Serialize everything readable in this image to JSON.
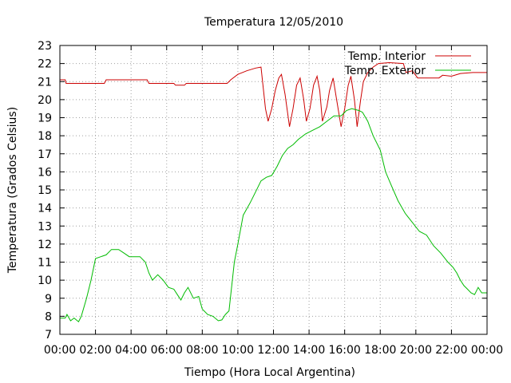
{
  "chart_data": {
    "type": "line",
    "title": "Temperatura 12/05/2010",
    "xlabel": "Tiempo (Hora Local Argentina)",
    "ylabel": "Temperatura (Grados Celsius)",
    "xlim": [
      "00:00",
      "24:00"
    ],
    "ylim": [
      7,
      23
    ],
    "x_unit": "hours",
    "x_ticks": [
      "00:00",
      "02:00",
      "04:00",
      "06:00",
      "08:00",
      "10:00",
      "12:00",
      "14:00",
      "16:00",
      "18:00",
      "20:00",
      "22:00",
      "00:00"
    ],
    "y_ticks": [
      7,
      8,
      9,
      10,
      11,
      12,
      13,
      14,
      15,
      16,
      17,
      18,
      19,
      20,
      21,
      22,
      23
    ],
    "grid": true,
    "legend_position": "top-right",
    "series": [
      {
        "name": "Temp. Interior",
        "color": "#cc0000",
        "points": [
          [
            0,
            21.1
          ],
          [
            0.3,
            21.1
          ],
          [
            0.35,
            20.9
          ],
          [
            2.5,
            20.9
          ],
          [
            2.6,
            21.1
          ],
          [
            4.9,
            21.1
          ],
          [
            5.0,
            20.9
          ],
          [
            6.4,
            20.9
          ],
          [
            6.5,
            20.8
          ],
          [
            7.0,
            20.8
          ],
          [
            7.1,
            20.9
          ],
          [
            9.4,
            20.9
          ],
          [
            9.6,
            21.1
          ],
          [
            10.0,
            21.4
          ],
          [
            10.5,
            21.6
          ],
          [
            11.0,
            21.75
          ],
          [
            11.3,
            21.8
          ],
          [
            11.55,
            19.5
          ],
          [
            11.7,
            18.8
          ],
          [
            11.9,
            19.5
          ],
          [
            12.1,
            20.5
          ],
          [
            12.3,
            21.2
          ],
          [
            12.45,
            21.4
          ],
          [
            12.65,
            20.3
          ],
          [
            12.9,
            18.5
          ],
          [
            13.1,
            19.5
          ],
          [
            13.3,
            20.8
          ],
          [
            13.5,
            21.2
          ],
          [
            13.7,
            20.0
          ],
          [
            13.85,
            18.8
          ],
          [
            14.05,
            19.5
          ],
          [
            14.25,
            20.8
          ],
          [
            14.45,
            21.3
          ],
          [
            14.6,
            20.5
          ],
          [
            14.75,
            18.8
          ],
          [
            15.0,
            19.6
          ],
          [
            15.15,
            20.5
          ],
          [
            15.35,
            21.2
          ],
          [
            15.55,
            20.0
          ],
          [
            15.8,
            18.5
          ],
          [
            16.0,
            19.5
          ],
          [
            16.2,
            20.8
          ],
          [
            16.35,
            21.3
          ],
          [
            16.55,
            20.0
          ],
          [
            16.7,
            18.5
          ],
          [
            16.9,
            20.0
          ],
          [
            17.05,
            21.0
          ],
          [
            17.3,
            21.5
          ],
          [
            17.6,
            21.8
          ],
          [
            17.9,
            22.0
          ],
          [
            18.5,
            22.05
          ],
          [
            19.3,
            22.0
          ],
          [
            19.45,
            21.5
          ],
          [
            19.8,
            21.6
          ],
          [
            20.1,
            21.2
          ],
          [
            20.5,
            21.2
          ],
          [
            21.3,
            21.2
          ],
          [
            21.5,
            21.35
          ],
          [
            22.0,
            21.3
          ],
          [
            22.5,
            21.45
          ],
          [
            23.2,
            21.5
          ],
          [
            24.0,
            21.5
          ]
        ]
      },
      {
        "name": "Temp. Exterior",
        "color": "#00bb00",
        "points": [
          [
            0,
            7.9
          ],
          [
            0.3,
            7.9
          ],
          [
            0.4,
            8.1
          ],
          [
            0.6,
            7.75
          ],
          [
            0.8,
            7.9
          ],
          [
            1.05,
            7.7
          ],
          [
            1.2,
            8.0
          ],
          [
            1.5,
            9.0
          ],
          [
            1.75,
            10.0
          ],
          [
            2.0,
            11.2
          ],
          [
            2.3,
            11.3
          ],
          [
            2.6,
            11.4
          ],
          [
            2.9,
            11.7
          ],
          [
            3.3,
            11.7
          ],
          [
            3.6,
            11.5
          ],
          [
            3.9,
            11.3
          ],
          [
            4.5,
            11.3
          ],
          [
            4.8,
            11.0
          ],
          [
            5.0,
            10.4
          ],
          [
            5.2,
            10.0
          ],
          [
            5.5,
            10.3
          ],
          [
            5.8,
            10.0
          ],
          [
            6.1,
            9.6
          ],
          [
            6.4,
            9.5
          ],
          [
            6.6,
            9.2
          ],
          [
            6.8,
            8.9
          ],
          [
            7.0,
            9.3
          ],
          [
            7.2,
            9.6
          ],
          [
            7.5,
            9.0
          ],
          [
            7.8,
            9.1
          ],
          [
            8.0,
            8.4
          ],
          [
            8.3,
            8.1
          ],
          [
            8.6,
            8.0
          ],
          [
            8.9,
            7.75
          ],
          [
            9.1,
            7.8
          ],
          [
            9.3,
            8.1
          ],
          [
            9.5,
            8.3
          ],
          [
            9.8,
            11.0
          ],
          [
            10.0,
            12.0
          ],
          [
            10.3,
            13.6
          ],
          [
            10.7,
            14.3
          ],
          [
            11.0,
            14.9
          ],
          [
            11.3,
            15.5
          ],
          [
            11.6,
            15.7
          ],
          [
            11.9,
            15.8
          ],
          [
            12.2,
            16.3
          ],
          [
            12.5,
            16.9
          ],
          [
            12.8,
            17.3
          ],
          [
            13.1,
            17.5
          ],
          [
            13.4,
            17.8
          ],
          [
            13.8,
            18.1
          ],
          [
            14.2,
            18.3
          ],
          [
            14.6,
            18.5
          ],
          [
            15.0,
            18.8
          ],
          [
            15.4,
            19.1
          ],
          [
            15.8,
            19.1
          ],
          [
            16.1,
            19.4
          ],
          [
            16.4,
            19.5
          ],
          [
            16.8,
            19.4
          ],
          [
            17.0,
            19.3
          ],
          [
            17.3,
            18.8
          ],
          [
            17.6,
            18.0
          ],
          [
            18.0,
            17.2
          ],
          [
            18.3,
            16.0
          ],
          [
            18.6,
            15.3
          ],
          [
            19.0,
            14.4
          ],
          [
            19.4,
            13.7
          ],
          [
            19.8,
            13.2
          ],
          [
            20.2,
            12.7
          ],
          [
            20.6,
            12.5
          ],
          [
            21.0,
            11.9
          ],
          [
            21.4,
            11.5
          ],
          [
            21.8,
            11.0
          ],
          [
            22.1,
            10.7
          ],
          [
            22.3,
            10.4
          ],
          [
            22.5,
            10.0
          ],
          [
            22.7,
            9.7
          ],
          [
            22.9,
            9.5
          ],
          [
            23.1,
            9.3
          ],
          [
            23.3,
            9.2
          ],
          [
            23.5,
            9.6
          ],
          [
            23.7,
            9.3
          ],
          [
            24.0,
            9.3
          ]
        ]
      }
    ]
  }
}
